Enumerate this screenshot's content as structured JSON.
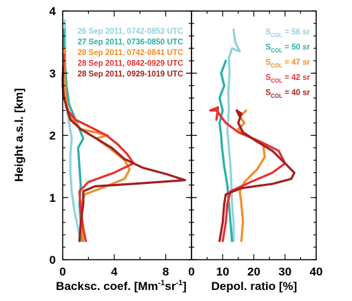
{
  "chart_data": [
    {
      "type": "line",
      "panel": "left",
      "title": "",
      "xlabel": "Backsc. coef. [Mm-1sr-1]",
      "xlabel_parts": [
        "Backsc. coef. [Mm",
        "-1",
        "sr",
        "-1",
        "]"
      ],
      "ylabel": "Height a.s.l. [km]",
      "xlim": [
        0,
        10
      ],
      "ylim": [
        0,
        4
      ],
      "x_ticks": [
        0,
        4,
        8
      ],
      "x_tick_labels": [
        "0",
        "4",
        "8"
      ],
      "y_ticks": [
        0,
        1,
        2,
        3,
        4
      ],
      "y_tick_labels": [
        "0",
        "1",
        "2",
        "3",
        "4"
      ],
      "legend_placement": "top-right",
      "grid": false,
      "series": [
        {
          "name": "26 Sep 2011, 0742-0852 UTC",
          "color": "#8fd3dc",
          "points": [
            [
              1.4,
              0.3
            ],
            [
              1.2,
              0.5
            ],
            [
              0.9,
              0.8
            ],
            [
              0.7,
              1.1
            ],
            [
              0.6,
              1.4
            ],
            [
              0.6,
              1.7
            ],
            [
              0.7,
              1.95
            ],
            [
              0.5,
              2.2
            ],
            [
              0.3,
              2.45
            ],
            [
              0.2,
              2.7
            ],
            [
              0.2,
              3.0
            ],
            [
              0.2,
              3.3
            ],
            [
              0.2,
              3.6
            ],
            [
              0.15,
              3.85
            ]
          ]
        },
        {
          "name": "27 Sep 2011, 0736-0850 UTC",
          "color": "#2ab0a6",
          "points": [
            [
              1.5,
              0.3
            ],
            [
              1.4,
              0.6
            ],
            [
              1.3,
              0.9
            ],
            [
              1.4,
              1.2
            ],
            [
              1.3,
              1.5
            ],
            [
              1.2,
              1.8
            ],
            [
              1.6,
              1.95
            ],
            [
              1.3,
              2.1
            ],
            [
              0.9,
              2.3
            ],
            [
              0.5,
              2.5
            ],
            [
              0.3,
              2.8
            ],
            [
              0.2,
              3.1
            ],
            [
              0.1,
              3.4
            ],
            [
              0.1,
              3.7
            ]
          ]
        },
        {
          "name": "28 Sep 2011, 0742-0841 UTC",
          "color": "#f28c28",
          "points": [
            [
              1.6,
              0.3
            ],
            [
              1.5,
              0.6
            ],
            [
              1.5,
              0.9
            ],
            [
              1.7,
              1.05
            ],
            [
              3.0,
              1.15
            ],
            [
              4.8,
              1.3
            ],
            [
              5.2,
              1.45
            ],
            [
              4.8,
              1.6
            ],
            [
              3.6,
              1.8
            ],
            [
              2.6,
              1.95
            ],
            [
              3.5,
              2.0
            ],
            [
              2.5,
              2.05
            ],
            [
              1.4,
              2.1
            ],
            [
              0.6,
              2.3
            ],
            [
              0.3,
              2.5
            ],
            [
              0.2,
              2.8
            ],
            [
              0.15,
              3.1
            ],
            [
              0.15,
              3.4
            ]
          ]
        },
        {
          "name": "28 Sep 2011, 0842-0929 UTC",
          "color": "#e8302e",
          "points": [
            [
              1.8,
              0.3
            ],
            [
              1.6,
              0.5
            ],
            [
              1.4,
              0.8
            ],
            [
              1.3,
              1.1
            ],
            [
              2.0,
              1.25
            ],
            [
              4.0,
              1.4
            ],
            [
              5.5,
              1.55
            ],
            [
              5.0,
              1.7
            ],
            [
              4.3,
              1.85
            ],
            [
              3.4,
              2.0
            ],
            [
              2.0,
              2.15
            ],
            [
              1.0,
              2.25
            ],
            [
              0.4,
              2.4
            ],
            [
              0.1,
              2.6
            ],
            [
              0.0,
              2.8
            ],
            [
              0.05,
              3.1
            ],
            [
              0.1,
              3.3
            ]
          ]
        },
        {
          "name": "28 Sep 2011, 0929-1019 UTC",
          "color": "#a31f1f",
          "points": [
            [
              1.3,
              0.3
            ],
            [
              1.4,
              0.6
            ],
            [
              1.6,
              0.9
            ],
            [
              1.6,
              1.1
            ],
            [
              2.5,
              1.18
            ],
            [
              5.5,
              1.22
            ],
            [
              9.5,
              1.28
            ],
            [
              8.0,
              1.38
            ],
            [
              6.2,
              1.48
            ],
            [
              4.8,
              1.62
            ],
            [
              3.8,
              1.8
            ],
            [
              2.6,
              1.95
            ],
            [
              1.4,
              2.1
            ],
            [
              0.6,
              2.25
            ],
            [
              0.3,
              2.45
            ],
            [
              0.05,
              2.65
            ],
            [
              0.0,
              2.9
            ],
            [
              0.05,
              3.1
            ]
          ]
        }
      ]
    },
    {
      "type": "line",
      "panel": "right",
      "title": "",
      "xlabel": "Depol. ratio [%]",
      "ylabel": "",
      "xlim": [
        0,
        40
      ],
      "ylim": [
        0,
        4
      ],
      "x_ticks": [
        0,
        10,
        20,
        30,
        40
      ],
      "x_tick_labels": [
        "0",
        "10",
        "20",
        "30",
        "40"
      ],
      "y_ticks": [
        0,
        1,
        2,
        3,
        4
      ],
      "legend_placement": "top-right",
      "grid": false,
      "series": [
        {
          "name": "S_COL = 56 sr",
          "label_parts": [
            "S",
            "COL",
            " = 56 sr"
          ],
          "color": "#8fd3dc",
          "points": [
            [
              13.5,
              0.3
            ],
            [
              13.5,
              0.6
            ],
            [
              13.0,
              0.9
            ],
            [
              12.8,
              1.2
            ],
            [
              12.5,
              1.5
            ],
            [
              12.0,
              1.8
            ],
            [
              11.5,
              2.1
            ],
            [
              12.0,
              2.4
            ],
            [
              11.8,
              2.7
            ],
            [
              12.2,
              3.0
            ],
            [
              12.0,
              3.25
            ],
            [
              13.0,
              3.4
            ],
            [
              15.5,
              3.35
            ],
            [
              14.0,
              3.5
            ],
            [
              13.5,
              3.7
            ]
          ]
        },
        {
          "name": "S_COL = 50 sr",
          "label_parts": [
            "S",
            "COL",
            " = 50 sr"
          ],
          "color": "#2ab0a6",
          "points": [
            [
              13.0,
              0.3
            ],
            [
              12.5,
              0.6
            ],
            [
              12.0,
              0.9
            ],
            [
              11.5,
              1.2
            ],
            [
              10.5,
              1.5
            ],
            [
              9.8,
              1.8
            ],
            [
              9.5,
              2.0
            ],
            [
              9.0,
              2.2
            ],
            [
              10.0,
              2.4
            ],
            [
              9.0,
              2.6
            ],
            [
              10.5,
              2.8
            ],
            [
              9.5,
              3.0
            ],
            [
              11.0,
              3.2
            ]
          ]
        },
        {
          "name": "S_COL = 47 sr",
          "label_parts": [
            "S",
            "COL",
            " = 47 sr"
          ],
          "color": "#f28c28",
          "points": [
            [
              16.0,
              0.3
            ],
            [
              16.5,
              0.6
            ],
            [
              16.0,
              0.9
            ],
            [
              15.5,
              1.1
            ],
            [
              17.0,
              1.25
            ],
            [
              21.0,
              1.45
            ],
            [
              23.5,
              1.65
            ],
            [
              23.0,
              1.85
            ],
            [
              18.0,
              2.0
            ],
            [
              15.0,
              2.1
            ],
            [
              17.0,
              2.2
            ],
            [
              15.5,
              2.3
            ],
            [
              17.5,
              2.4
            ]
          ]
        },
        {
          "name": "S_COL = 42 sr",
          "label_parts": [
            "S",
            "COL",
            " = 42 sr"
          ],
          "color": "#e8302e",
          "points": [
            [
              10.0,
              0.3
            ],
            [
              11.0,
              0.6
            ],
            [
              11.5,
              0.9
            ],
            [
              12.5,
              1.1
            ],
            [
              19.0,
              1.25
            ],
            [
              26.0,
              1.4
            ],
            [
              30.0,
              1.55
            ],
            [
              28.0,
              1.75
            ],
            [
              22.0,
              1.9
            ],
            [
              15.0,
              2.05
            ],
            [
              11.0,
              2.2
            ],
            [
              9.5,
              2.3
            ],
            [
              8.0,
              2.4
            ],
            [
              6.0,
              2.4
            ],
            [
              8.5,
              2.45
            ],
            [
              8.0,
              2.25
            ]
          ]
        },
        {
          "name": "S_COL = 40 sr",
          "label_parts": [
            "S",
            "COL",
            " = 40 sr"
          ],
          "color": "#a31f1f",
          "points": [
            [
              9.0,
              0.3
            ],
            [
              10.0,
              0.6
            ],
            [
              10.5,
              0.9
            ],
            [
              11.0,
              1.05
            ],
            [
              16.0,
              1.15
            ],
            [
              26.0,
              1.22
            ],
            [
              32.0,
              1.3
            ],
            [
              33.0,
              1.4
            ],
            [
              30.0,
              1.55
            ],
            [
              26.0,
              1.75
            ],
            [
              21.0,
              1.9
            ],
            [
              16.5,
              2.05
            ],
            [
              15.0,
              2.2
            ],
            [
              16.0,
              2.35
            ],
            [
              14.5,
              2.4
            ],
            [
              15.5,
              2.3
            ]
          ]
        }
      ]
    }
  ]
}
